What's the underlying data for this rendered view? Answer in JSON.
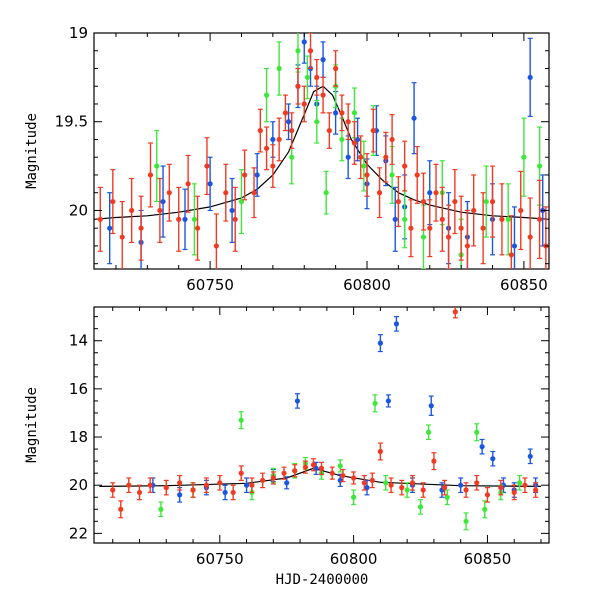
{
  "colors": {
    "blue": "#1a57e0",
    "green": "#3ee83a",
    "red": "#f23a22",
    "fit": "#000000"
  },
  "chart_data": [
    {
      "type": "scatter",
      "panel": "top",
      "title": "",
      "xlabel": "",
      "ylabel": "Magnitude",
      "xlim": [
        60713,
        60858
      ],
      "ylim": [
        20.33,
        19.0
      ],
      "x_ticks": [
        60750,
        60800,
        60850
      ],
      "y_ticks": [
        19,
        19.5,
        20
      ],
      "y_tick_labels": [
        "19",
        "19.5",
        "20"
      ],
      "grid": false,
      "legend": "none",
      "curve": {
        "x": [
          60713,
          60720,
          60730,
          60740,
          60750,
          60760,
          60765,
          60770,
          60775,
          60780,
          60783,
          60786,
          60789,
          60792,
          60795,
          60800,
          60805,
          60810,
          60815,
          60820,
          60830,
          60840,
          60850,
          60858
        ],
        "y": [
          20.05,
          20.04,
          20.03,
          20.01,
          19.98,
          19.93,
          19.88,
          19.8,
          19.67,
          19.46,
          19.33,
          19.3,
          19.35,
          19.47,
          19.6,
          19.74,
          19.83,
          19.9,
          19.94,
          19.97,
          20.01,
          20.03,
          20.04,
          20.05
        ]
      },
      "series": [
        {
          "color_key": "blue",
          "x": [
            60718,
            60728,
            60735,
            60742,
            60750,
            60757,
            60765,
            60770,
            60775,
            60778,
            60780,
            60782,
            60784,
            60786,
            60790,
            60794,
            60797,
            60800,
            60803,
            60806,
            60809,
            60812,
            60815,
            60820,
            60826,
            60832,
            60840,
            60847,
            60852,
            60856
          ],
          "y": [
            20.1,
            20.18,
            19.95,
            20.05,
            19.85,
            20.0,
            19.8,
            19.6,
            19.5,
            19.3,
            19.05,
            19.2,
            19.4,
            19.15,
            19.45,
            19.7,
            19.6,
            19.85,
            19.55,
            19.72,
            20.05,
            19.98,
            19.48,
            19.9,
            20.1,
            20.15,
            20.05,
            20.2,
            19.25,
            20.0
          ],
          "err": [
            0.2,
            0.18,
            0.2,
            0.17,
            0.15,
            0.18,
            0.12,
            0.1,
            0.1,
            0.12,
            0.12,
            0.1,
            0.1,
            0.1,
            0.12,
            0.12,
            0.12,
            0.14,
            0.14,
            0.14,
            0.18,
            0.18,
            0.2,
            0.18,
            0.2,
            0.2,
            0.2,
            0.22,
            0.22,
            0.2
          ]
        },
        {
          "color_key": "green",
          "x": [
            60733,
            60745,
            60760,
            60768,
            60772,
            60776,
            60778,
            60781,
            60784,
            60787,
            60790,
            60792,
            60796,
            60799,
            60802,
            60808,
            60812,
            60818,
            60824,
            60830,
            60838,
            60845,
            60850,
            60855
          ],
          "y": [
            19.75,
            20.05,
            19.95,
            19.35,
            19.2,
            19.7,
            19.1,
            19.25,
            19.5,
            19.9,
            19.3,
            19.6,
            19.45,
            19.75,
            19.55,
            19.8,
            20.05,
            20.15,
            19.9,
            20.25,
            19.95,
            20.05,
            19.7,
            19.75
          ],
          "err": [
            0.2,
            0.2,
            0.18,
            0.15,
            0.15,
            0.15,
            0.12,
            0.12,
            0.12,
            0.12,
            0.12,
            0.12,
            0.14,
            0.14,
            0.14,
            0.16,
            0.16,
            0.18,
            0.18,
            0.2,
            0.2,
            0.2,
            0.22,
            0.22
          ]
        },
        {
          "color_key": "red",
          "x": [
            60715,
            60719,
            60722,
            60725,
            60728,
            60731,
            60734,
            60737,
            60740,
            60743,
            60746,
            60749,
            60752,
            60755,
            60758,
            60761,
            60764,
            60766,
            60768,
            60770,
            60772,
            60774,
            60776,
            60778,
            60780,
            60782,
            60784,
            60786,
            60788,
            60790,
            60792,
            60794,
            60796,
            60798,
            60800,
            60802,
            60804,
            60806,
            60808,
            60810,
            60812,
            60814,
            60816,
            60818,
            60820,
            60822,
            60824,
            60826,
            60828,
            60830,
            60832,
            60834,
            60837,
            60840,
            60843,
            60846,
            60849,
            60852,
            60855,
            60857
          ],
          "y": [
            20.05,
            19.95,
            20.15,
            20.0,
            20.1,
            19.8,
            20.0,
            19.9,
            20.05,
            19.85,
            20.1,
            19.75,
            20.2,
            19.9,
            20.05,
            19.8,
            19.9,
            19.55,
            19.65,
            19.75,
            19.6,
            19.45,
            19.55,
            19.3,
            19.4,
            19.1,
            19.25,
            19.35,
            19.55,
            19.2,
            19.45,
            19.5,
            19.62,
            19.7,
            19.8,
            19.55,
            19.9,
            19.7,
            19.6,
            19.95,
            19.75,
            20.1,
            19.8,
            19.95,
            20.1,
            19.9,
            20.05,
            20.15,
            19.95,
            20.1,
            20.2,
            20.0,
            20.1,
            19.95,
            20.05,
            20.25,
            20.0,
            20.15,
            20.05,
            20.2
          ],
          "err": [
            0.18,
            0.18,
            0.2,
            0.18,
            0.18,
            0.18,
            0.18,
            0.16,
            0.18,
            0.16,
            0.18,
            0.16,
            0.18,
            0.16,
            0.18,
            0.14,
            0.14,
            0.12,
            0.12,
            0.12,
            0.12,
            0.1,
            0.1,
            0.1,
            0.1,
            0.1,
            0.1,
            0.1,
            0.1,
            0.1,
            0.1,
            0.1,
            0.12,
            0.12,
            0.12,
            0.12,
            0.14,
            0.14,
            0.14,
            0.14,
            0.14,
            0.16,
            0.16,
            0.16,
            0.16,
            0.16,
            0.18,
            0.18,
            0.18,
            0.18,
            0.2,
            0.2,
            0.2,
            0.2,
            0.2,
            0.22,
            0.22,
            0.22,
            0.22,
            0.22
          ]
        }
      ]
    },
    {
      "type": "scatter",
      "panel": "bottom",
      "title": "",
      "xlabel": "HJD-2400000",
      "ylabel": "Magnitude",
      "xlim": [
        60703,
        60873
      ],
      "ylim": [
        22.4,
        12.6
      ],
      "x_ticks": [
        60750,
        60800,
        60850
      ],
      "y_ticks": [
        14,
        16,
        18,
        20,
        22
      ],
      "y_tick_labels": [
        "14",
        "16",
        "18",
        "20",
        "22"
      ],
      "grid": false,
      "legend": "none",
      "curve": {
        "x": [
          60705,
          60730,
          60760,
          60775,
          60785,
          60795,
          60810,
          60840,
          60870
        ],
        "y": [
          20.05,
          20.02,
          19.92,
          19.7,
          19.3,
          19.6,
          19.88,
          20.02,
          20.05
        ]
      },
      "series": [
        {
          "color_key": "blue",
          "x": [
            60725,
            60735,
            60745,
            60752,
            60760,
            60770,
            60775,
            60779,
            60786,
            60795,
            60805,
            60810,
            60813,
            60816,
            60822,
            60829,
            60833,
            60840,
            60848,
            60852,
            60856,
            60860,
            60866,
            60868
          ],
          "y": [
            20.0,
            20.4,
            20.1,
            20.3,
            20.0,
            19.6,
            19.9,
            16.5,
            19.3,
            19.8,
            20.1,
            14.1,
            16.5,
            13.3,
            20.0,
            16.7,
            20.2,
            20.0,
            18.4,
            18.9,
            20.0,
            20.2,
            18.8,
            20.0
          ],
          "err": [
            0.3,
            0.3,
            0.3,
            0.3,
            0.3,
            0.25,
            0.25,
            0.3,
            0.25,
            0.25,
            0.3,
            0.35,
            0.25,
            0.3,
            0.3,
            0.4,
            0.3,
            0.3,
            0.3,
            0.3,
            0.3,
            0.3,
            0.3,
            0.3
          ]
        },
        {
          "color_key": "green",
          "x": [
            60728,
            60740,
            60758,
            60762,
            60770,
            60778,
            60782,
            60788,
            60795,
            60800,
            60808,
            60812,
            60820,
            60825,
            60828,
            60835,
            60842,
            60846,
            60849,
            60855,
            60862
          ],
          "y": [
            21.0,
            20.2,
            17.3,
            20.3,
            19.6,
            19.4,
            19.1,
            19.5,
            19.2,
            20.5,
            16.6,
            19.9,
            20.2,
            20.9,
            17.8,
            20.5,
            21.5,
            17.8,
            21.0,
            20.3,
            19.9
          ],
          "err": [
            0.3,
            0.3,
            0.35,
            0.3,
            0.3,
            0.3,
            0.25,
            0.25,
            0.25,
            0.3,
            0.35,
            0.3,
            0.3,
            0.3,
            0.3,
            0.3,
            0.35,
            0.35,
            0.35,
            0.3,
            0.3
          ]
        },
        {
          "color_key": "red",
          "x": [
            60710,
            60713,
            60716,
            60720,
            60724,
            60730,
            60735,
            60740,
            60745,
            60750,
            60755,
            60758,
            60762,
            60766,
            60770,
            60774,
            60778,
            60782,
            60785,
            60788,
            60792,
            60796,
            60800,
            60804,
            60807,
            60810,
            60814,
            60818,
            60822,
            60826,
            60830,
            60834,
            60838,
            60842,
            60846,
            60850,
            60855,
            60860,
            60864,
            60868
          ],
          "y": [
            20.2,
            21.0,
            20.0,
            20.3,
            20.0,
            20.1,
            19.9,
            20.2,
            20.0,
            19.9,
            20.3,
            19.5,
            20.0,
            19.8,
            19.7,
            19.5,
            19.4,
            19.25,
            19.15,
            19.3,
            19.5,
            19.6,
            19.7,
            19.9,
            19.8,
            18.6,
            20.0,
            20.1,
            19.9,
            20.2,
            19.0,
            20.1,
            12.8,
            20.2,
            19.9,
            20.4,
            20.1,
            20.3,
            20.0,
            20.2
          ],
          "err": [
            0.3,
            0.35,
            0.3,
            0.3,
            0.3,
            0.3,
            0.3,
            0.3,
            0.3,
            0.3,
            0.3,
            0.3,
            0.3,
            0.3,
            0.25,
            0.25,
            0.25,
            0.25,
            0.25,
            0.25,
            0.25,
            0.25,
            0.25,
            0.3,
            0.3,
            0.35,
            0.3,
            0.3,
            0.3,
            0.3,
            0.35,
            0.3,
            0.25,
            0.3,
            0.3,
            0.3,
            0.3,
            0.3,
            0.3,
            0.3
          ]
        }
      ]
    }
  ]
}
